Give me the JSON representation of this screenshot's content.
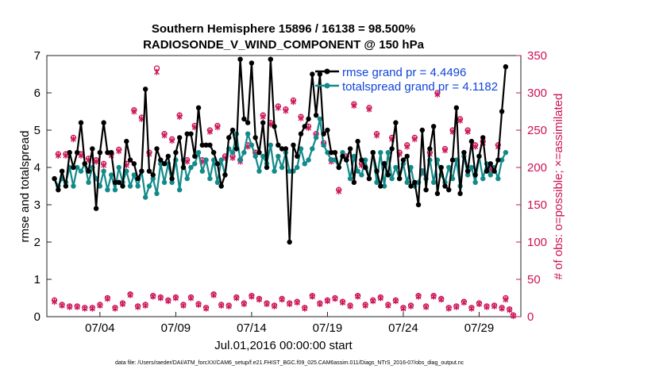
{
  "chart_data": {
    "type": "line",
    "title_line1": "Southern Hemisphere 15896 / 16138 = 98.500%",
    "title_line2": "RADIOSONDE_V_WIND_COMPONENT @ 150 hPa",
    "xlabel": "Jul.01,2016 00:00:00 start",
    "ylabel_left": "rmse and totalspread",
    "ylabel_right": "# of obs: o=possible; ×=assimilated",
    "xlim": [
      0.5,
      31.75
    ],
    "ylim_left": [
      0,
      7
    ],
    "ylim_right": [
      0,
      350
    ],
    "x_ticks": [
      {
        "value": 4,
        "label": "07/04"
      },
      {
        "value": 9,
        "label": "07/09"
      },
      {
        "value": 14,
        "label": "07/14"
      },
      {
        "value": 19,
        "label": "07/19"
      },
      {
        "value": 24,
        "label": "07/24"
      },
      {
        "value": 29,
        "label": "07/29"
      }
    ],
    "y_ticks_left": [
      "0",
      "1",
      "2",
      "3",
      "4",
      "5",
      "6",
      "7"
    ],
    "y_ticks_right": [
      "0",
      "50",
      "100",
      "150",
      "200",
      "250",
      "300",
      "350"
    ],
    "colors": {
      "rmse": "#000000",
      "spread": "#138a8a",
      "obs": "#cc1155",
      "legend_text": "#1144dd"
    },
    "legend": [
      {
        "series": "rmse",
        "label": "rmse grand pr = 4.4496"
      },
      {
        "series": "spread",
        "label": "totalspread grand pr = 4.1182"
      }
    ],
    "series": [
      {
        "name": "rmse",
        "values": [
          3.7,
          3.4,
          3.9,
          3.5,
          4.4,
          4.0,
          4.4,
          5.2,
          4.1,
          3.9,
          4.5,
          2.9,
          4.4,
          5.2,
          4.4,
          4.4,
          3.6,
          3.6,
          3.5,
          4.7,
          4.2,
          4.1,
          3.7,
          3.9,
          6.1,
          3.9,
          3.8,
          4.5,
          4.2,
          4.1,
          4.3,
          3.7,
          4.4,
          4.8,
          4.0,
          4.9,
          4.9,
          4.3,
          5.6,
          4.6,
          4.6,
          4.6,
          4.4,
          4.1,
          3.5,
          3.8,
          4.8,
          5.0,
          4.5,
          6.9,
          5.3,
          5.2,
          6.8,
          4.8,
          4.4,
          5.2,
          4.0,
          6.9,
          5.1,
          4.6,
          4.5,
          4.5,
          2.0,
          4.6,
          4.3,
          4.9,
          5.1,
          5.3,
          6.5,
          5.4,
          6.5,
          4.9,
          5.0,
          4.4,
          4.4,
          4.0,
          4.3,
          4.2,
          4.5,
          3.6,
          4.7,
          4.2,
          4.0,
          3.7,
          4.4,
          3.9,
          3.5,
          4.1,
          3.8,
          4.5,
          5.2,
          3.7,
          4.2,
          4.3,
          3.5,
          3.6,
          3.0,
          5.0,
          3.4,
          4.5,
          5.1,
          3.3,
          4.0,
          3.5,
          3.4,
          4.2,
          5.6,
          3.3,
          4.4,
          3.9,
          4.7,
          3.8,
          4.3,
          4.8,
          3.9,
          4.1,
          3.9,
          4.2,
          5.5,
          6.7
        ]
      },
      {
        "name": "spread",
        "values": [
          3.7,
          3.5,
          3.7,
          3.6,
          4.0,
          3.5,
          4.0,
          3.9,
          4.1,
          3.6,
          4.0,
          3.7,
          3.5,
          3.9,
          3.4,
          3.8,
          3.4,
          4.0,
          3.6,
          3.9,
          3.5,
          3.8,
          3.5,
          3.9,
          3.2,
          3.5,
          3.7,
          3.3,
          4.1,
          3.6,
          4.1,
          3.6,
          4.2,
          3.4,
          4.2,
          3.7,
          4.0,
          4.1,
          4.4,
          3.9,
          4.2,
          3.7,
          4.2,
          3.6,
          4.2,
          3.8,
          4.5,
          4.4,
          4.9,
          4.2,
          4.4,
          4.9,
          4.6,
          4.3,
          3.9,
          4.3,
          4.1,
          4.6,
          3.9,
          4.3,
          4.0,
          4.4,
          3.9,
          3.9,
          4.0,
          4.5,
          4.1,
          4.2,
          4.5,
          4.8,
          5.3,
          4.6,
          4.4,
          4.2,
          4.2,
          4.0,
          4.4,
          4.2,
          3.7,
          4.3,
          3.9,
          3.8,
          4.2,
          3.7,
          4.4,
          3.6,
          4.4,
          3.5,
          4.4,
          3.7,
          4.0,
          3.7,
          4.1,
          3.6,
          4.0,
          3.5,
          3.6,
          3.9,
          3.7,
          4.2,
          3.6,
          4.2,
          3.8,
          3.6,
          4.0,
          3.7,
          4.2,
          3.5,
          4.3,
          3.8,
          4.0,
          3.6,
          4.3,
          3.7,
          4.1,
          3.8,
          4.0,
          3.7,
          4.2,
          4.4
        ]
      },
      {
        "name": "obs_possible",
        "values": [
          22,
          218,
          16,
          218,
          14,
          240,
          14,
          218,
          12,
          212,
          12,
          210,
          16,
          205,
          25,
          218,
          12,
          224,
          18,
          205,
          30,
          277,
          14,
          267,
          16,
          220,
          28,
          333,
          26,
          245,
          22,
          238,
          26,
          270,
          16,
          210,
          26,
          256,
          17,
          210,
          12,
          250,
          30,
          256,
          16,
          215,
          15,
          215,
          26,
          210,
          18,
          230,
          28,
          220,
          24,
          270,
          18,
          260,
          15,
          282,
          24,
          278,
          18,
          290,
          20,
          268,
          12,
          255,
          28,
          245,
          18,
          233,
          22,
          210,
          25,
          170,
          20,
          215,
          15,
          285,
          28,
          205,
          16,
          280,
          22,
          245,
          26,
          205,
          16,
          240,
          22,
          220,
          12,
          230,
          15,
          240,
          28,
          195,
          14,
          220,
          28,
          300,
          24,
          225,
          12,
          250,
          14,
          265,
          20,
          250,
          12,
          230,
          18,
          235,
          14,
          200,
          15,
          230,
          12,
          25,
          10,
          2
        ]
      },
      {
        "name": "obs_assimilated",
        "values": [
          20,
          216,
          15,
          216,
          13,
          238,
          13,
          216,
          11,
          210,
          11,
          208,
          15,
          203,
          24,
          216,
          11,
          222,
          17,
          203,
          29,
          275,
          13,
          265,
          15,
          218,
          27,
          328,
          25,
          243,
          21,
          236,
          25,
          268,
          15,
          208,
          25,
          254,
          16,
          208,
          11,
          248,
          29,
          254,
          15,
          213,
          14,
          213,
          25,
          208,
          17,
          228,
          27,
          218,
          23,
          268,
          17,
          258,
          14,
          280,
          23,
          276,
          17,
          288,
          19,
          266,
          11,
          253,
          27,
          243,
          17,
          231,
          21,
          208,
          24,
          168,
          19,
          213,
          14,
          283,
          27,
          203,
          15,
          278,
          21,
          243,
          25,
          203,
          15,
          238,
          21,
          218,
          11,
          228,
          14,
          238,
          27,
          193,
          13,
          218,
          27,
          298,
          23,
          223,
          11,
          248,
          13,
          263,
          19,
          248,
          11,
          228,
          17,
          233,
          13,
          198,
          14,
          228,
          11,
          23,
          9,
          1
        ]
      }
    ]
  },
  "footer": "data file: /Users/raeder/DAI/ATM_forcXX/CAM6_setup/f.e21.FHIST_BGC.f09_025.CAM6assim.011/Diags_NTrS_2016-07/obs_diag_output.nc"
}
